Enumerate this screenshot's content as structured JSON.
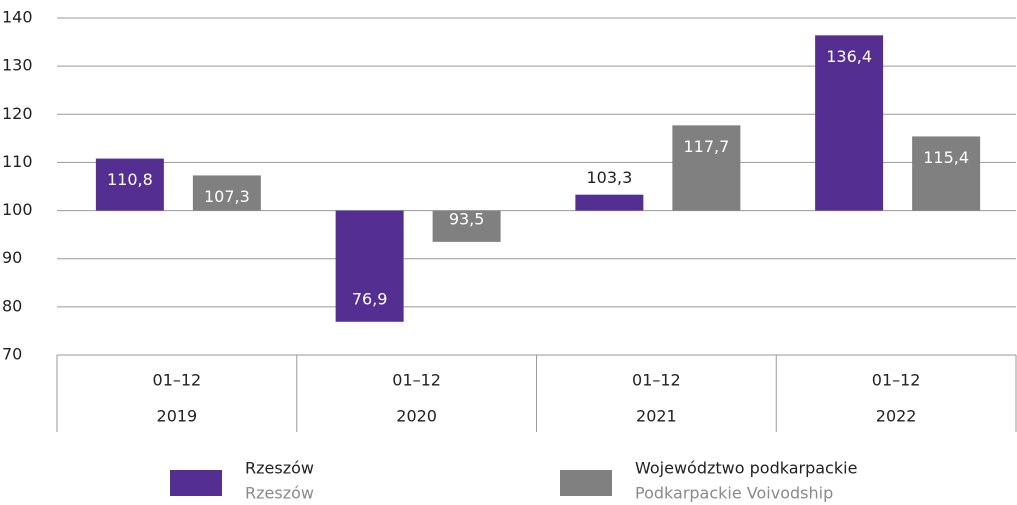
{
  "chart_data": {
    "type": "bar",
    "categories": [
      "2019",
      "2020",
      "2021",
      "2022"
    ],
    "sub_categories": [
      "01–12",
      "01–12",
      "01–12",
      "01–12"
    ],
    "series": [
      {
        "name": "Rzeszów",
        "name_en": "Rzeszów",
        "color": "#552e91",
        "values": [
          110.8,
          76.9,
          103.3,
          136.4
        ],
        "value_labels": [
          "110,8",
          "76,9",
          "103,3",
          "136,4"
        ]
      },
      {
        "name": "Województwo podkarpackie",
        "name_en": "Podkarpackie Voivodship",
        "color": "#808080",
        "values": [
          107.3,
          93.5,
          117.7,
          115.4
        ],
        "value_labels": [
          "107,3",
          "93,5",
          "117,7",
          "115,4"
        ]
      }
    ],
    "bar_base": 100,
    "ylim": [
      70,
      140
    ],
    "yticks": [
      70,
      80,
      90,
      100,
      110,
      120,
      130,
      140
    ],
    "grid": true
  }
}
